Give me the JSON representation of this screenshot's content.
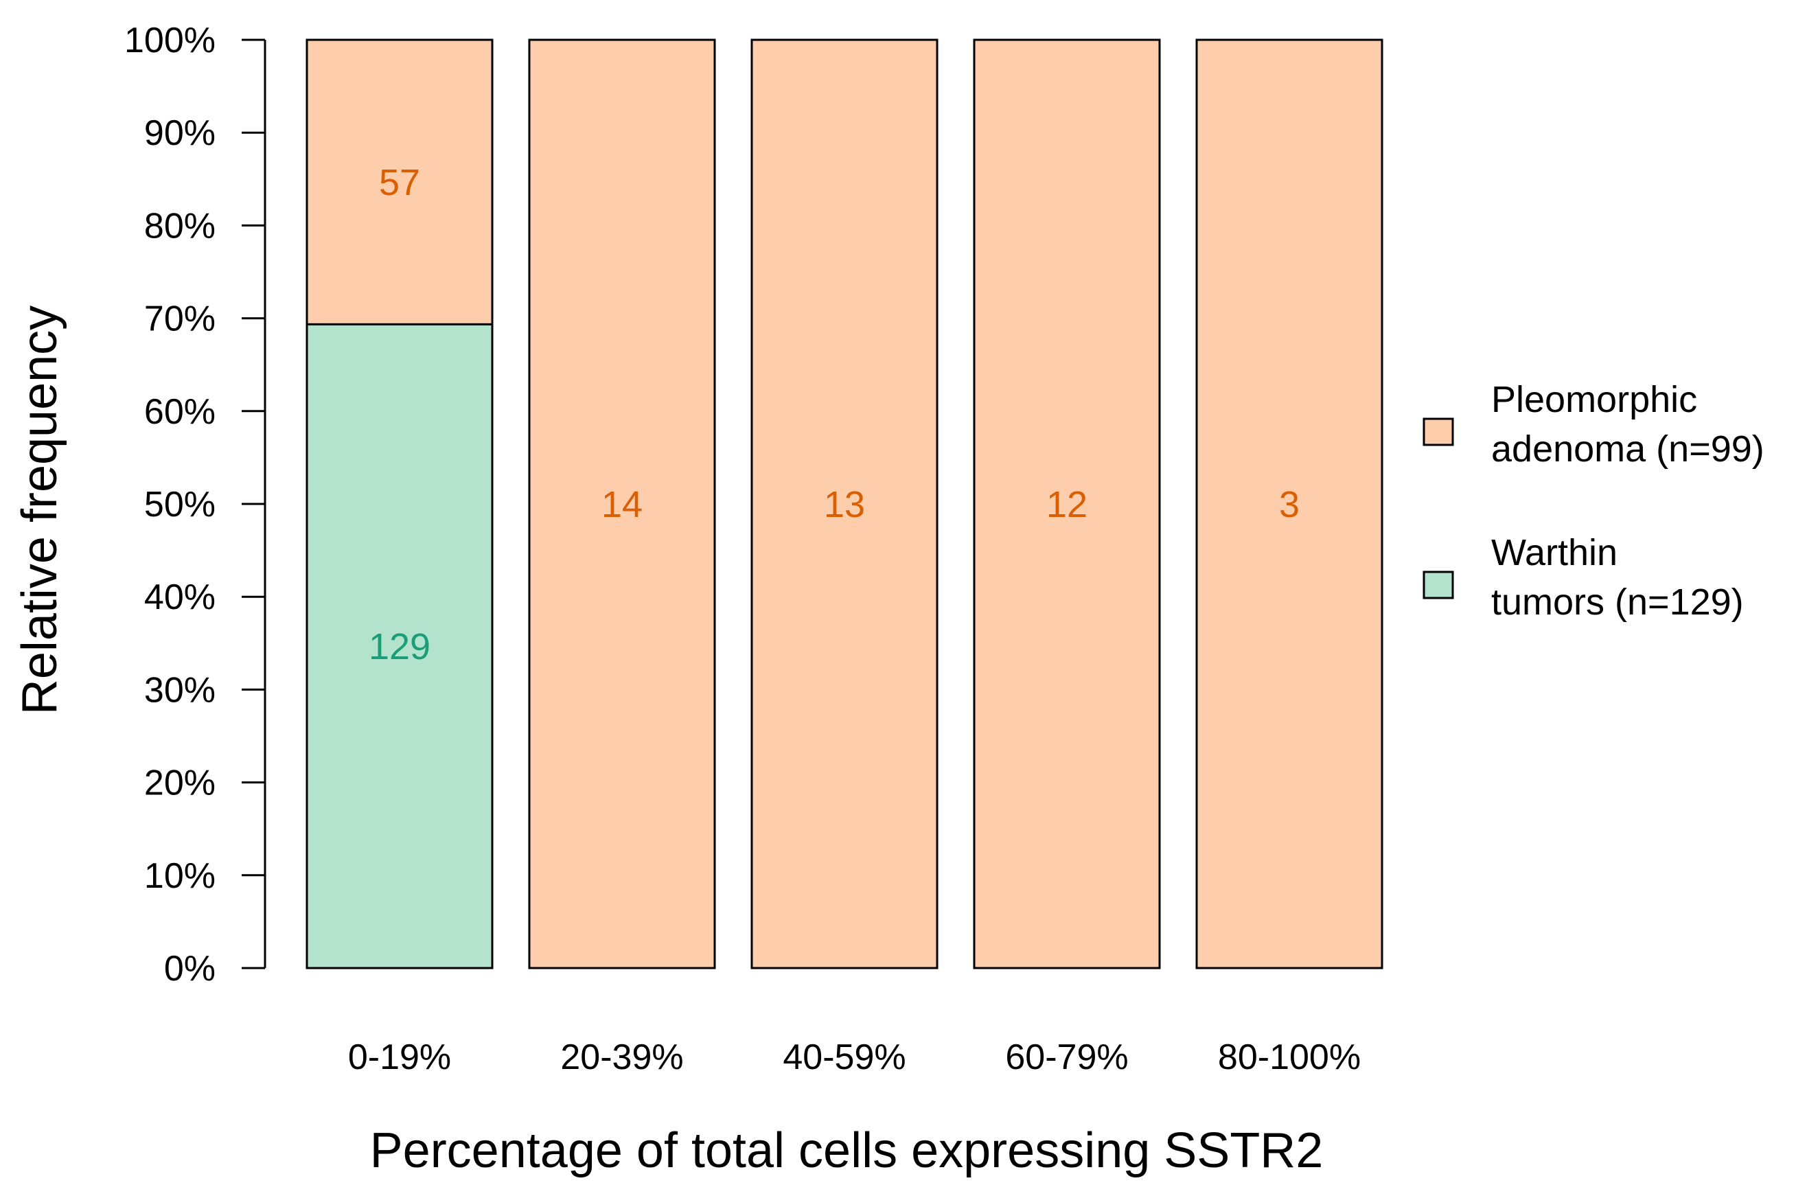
{
  "chart_data": {
    "type": "bar",
    "stacked": true,
    "normalized": true,
    "title": "",
    "xlabel": "Percentage of total cells expressing SSTR2",
    "ylabel": "Relative frequency",
    "ylim": [
      0,
      100
    ],
    "yticks": [
      "0%",
      "10%",
      "20%",
      "30%",
      "40%",
      "50%",
      "60%",
      "70%",
      "80%",
      "90%",
      "100%"
    ],
    "categories": [
      "0-19%",
      "20-39%",
      "40-59%",
      "60-79%",
      "80-100%"
    ],
    "series": [
      {
        "name": "Warthin tumors (n=129)",
        "legend_lines": [
          "Warthin",
          "tumors (n=129)"
        ],
        "fill": "#b3e2cd",
        "label_color": "#1b9e77",
        "counts": [
          129,
          0,
          0,
          0,
          0
        ],
        "count_labels": [
          "129",
          "",
          "",
          "",
          ""
        ]
      },
      {
        "name": "Pleomorphic adenoma (n=99)",
        "legend_lines": [
          "Pleomorphic",
          "adenoma (n=99)"
        ],
        "fill": "#fdcdac",
        "label_color": "#d95f02",
        "counts": [
          57,
          14,
          13,
          12,
          3
        ],
        "count_labels": [
          "57",
          "14",
          "13",
          "12",
          "3"
        ]
      }
    ],
    "legend_position": "right"
  }
}
